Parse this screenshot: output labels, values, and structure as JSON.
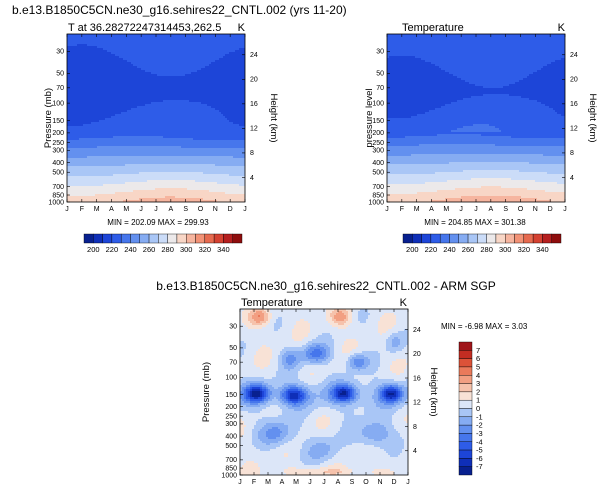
{
  "figure": {
    "top_title": "b.e13.B1850C5CN.ne30_g16.sehires22_CNTL.002 (yrs 11-20)",
    "diff_title": "b.e13.B1850C5CN.ne30_g16.sehires22_CNTL.002 - ARM SGP"
  },
  "chart_data": [
    {
      "type": "heatmap",
      "name": "model",
      "title_left": "T at 36.28272247314453,262.5",
      "title_right": "K",
      "ylabel": "Pressure (mb)",
      "ylabel_right": "Height (km)",
      "x_ticks": [
        "J",
        "F",
        "M",
        "A",
        "M",
        "J",
        "J",
        "A",
        "S",
        "O",
        "N",
        "D",
        "J"
      ],
      "p_ticks": [
        "30",
        "50",
        "70",
        "100",
        "150",
        "200",
        "250",
        "300",
        "400",
        "500",
        "700",
        "850",
        "1000"
      ],
      "z_ticks": [
        "24",
        "20",
        "16",
        "12",
        "8",
        "4"
      ],
      "ylim_mb": [
        1000,
        20
      ],
      "stats": "MIN = 202.09 MAX = 299.93",
      "min": 202.09,
      "max": 299.93,
      "colorbar": {
        "levels": [
          190,
          200,
          210,
          220,
          230,
          240,
          250,
          260,
          270,
          280,
          290,
          300,
          310,
          320,
          330,
          340,
          350
        ],
        "labels": [
          "200",
          "220",
          "240",
          "260",
          "280",
          "300",
          "320",
          "340"
        ],
        "colors": [
          "#08208f",
          "#0f2fb8",
          "#1d45d8",
          "#2e5ce8",
          "#4676ec",
          "#6390ef",
          "#86acf2",
          "#a9c6f6",
          "#cbdcf8",
          "#ece9ea",
          "#f8d6c6",
          "#f6b59f",
          "#f29276",
          "#e66a4f",
          "#d44131",
          "#b51f1f",
          "#8e0d0d"
        ]
      }
    },
    {
      "type": "heatmap",
      "name": "obs",
      "title_left": "Temperature",
      "title_right": "K",
      "ylabel": "pressure level",
      "ylabel_right": "Height (km)",
      "x_ticks": [
        "J",
        "F",
        "M",
        "A",
        "M",
        "J",
        "J",
        "A",
        "S",
        "O",
        "N",
        "D",
        "J"
      ],
      "p_ticks": [
        "30",
        "50",
        "70",
        "100",
        "150",
        "200",
        "250",
        "300",
        "400",
        "500",
        "700",
        "850",
        "1000"
      ],
      "z_ticks": [
        "24",
        "20",
        "16",
        "12",
        "8",
        "4"
      ],
      "ylim_mb": [
        1000,
        20
      ],
      "stats": "MIN = 204.85 MAX = 301.38",
      "min": 204.85,
      "max": 301.38
    },
    {
      "type": "heatmap",
      "name": "diff",
      "title_left": "Temperature",
      "title_right": "K",
      "ylabel": "Pressure (mb)",
      "ylabel_right": "Height (km)",
      "x_ticks": [
        "J",
        "F",
        "M",
        "A",
        "M",
        "J",
        "J",
        "A",
        "S",
        "O",
        "N",
        "D",
        "J"
      ],
      "p_ticks": [
        "30",
        "50",
        "70",
        "100",
        "150",
        "200",
        "250",
        "300",
        "400",
        "500",
        "700",
        "850",
        "1000"
      ],
      "z_ticks": [
        "24",
        "20",
        "16",
        "12",
        "8",
        "4"
      ],
      "ylim_mb": [
        1000,
        20
      ],
      "stats": "MIN =  -6.98 MAX =   3.03",
      "min": -6.98,
      "max": 3.03,
      "colorbar": {
        "levels": [
          -8,
          -7,
          -6,
          -5,
          -4,
          -3,
          -2,
          -1,
          0,
          1,
          2,
          3,
          4,
          5,
          6,
          7,
          8
        ],
        "labels": [
          "7",
          "6",
          "5",
          "4",
          "3",
          "2",
          "1",
          "0",
          "-1",
          "-2",
          "-3",
          "-4",
          "-5",
          "-6",
          "-7"
        ],
        "colors": [
          "#08208f",
          "#0f2fb8",
          "#1d45d8",
          "#2e5ce8",
          "#4676ec",
          "#6390ef",
          "#86acf2",
          "#a9c6f6",
          "#dce6f8",
          "#f8e2d6",
          "#f6c2ab",
          "#f29f82",
          "#ea7a5b",
          "#dc5238",
          "#c32d22",
          "#a0151a"
        ]
      }
    }
  ]
}
